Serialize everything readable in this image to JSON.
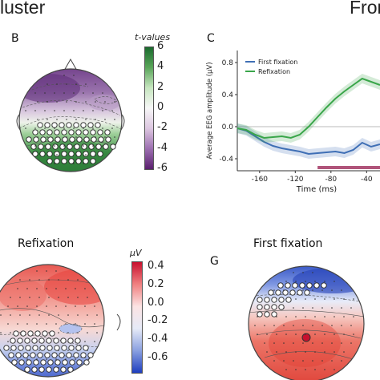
{
  "header": {
    "left": "luster",
    "right": "Fron"
  },
  "panelB": {
    "label": "B",
    "colorbar": {
      "unit": "t-values",
      "ticks": [
        "6",
        "4",
        "2",
        "0",
        "-2",
        "-4",
        "-6"
      ],
      "colors": [
        "#1b6b2e",
        "#5aa65a",
        "#c7e6c0",
        "#f7f7f7",
        "#dcc6e0",
        "#9c6fb0",
        "#5a1f6e"
      ]
    }
  },
  "panelC": {
    "label": "C",
    "chart_data": {
      "type": "line",
      "xlabel": "Time (ms)",
      "ylabel": "Average EEG amplitude (μV)",
      "xlim": [
        -185,
        -25
      ],
      "ylim": [
        -0.55,
        0.95
      ],
      "xticks": [
        "-160",
        "-120",
        "-80",
        "-40"
      ],
      "yticks": [
        "0.8",
        "0.4",
        "0.0",
        "-0.4"
      ],
      "legend": "top-left",
      "series": [
        {
          "name": "First fixation",
          "color": "#3f6fb5",
          "x": [
            -185,
            -175,
            -165,
            -155,
            -145,
            -135,
            -125,
            -115,
            -105,
            -95,
            -85,
            -75,
            -65,
            -55,
            -45,
            -35,
            -25
          ],
          "y": [
            -0.02,
            -0.05,
            -0.12,
            -0.19,
            -0.24,
            -0.27,
            -0.29,
            -0.31,
            -0.34,
            -0.33,
            -0.32,
            -0.31,
            -0.33,
            -0.29,
            -0.2,
            -0.25,
            -0.22
          ]
        },
        {
          "name": "Refixation",
          "color": "#3aa64a",
          "x": [
            -185,
            -175,
            -165,
            -155,
            -145,
            -135,
            -125,
            -115,
            -105,
            -95,
            -85,
            -75,
            -65,
            -55,
            -45,
            -35,
            -25
          ],
          "y": [
            -0.02,
            -0.04,
            -0.1,
            -0.14,
            -0.13,
            -0.12,
            -0.14,
            -0.1,
            0.0,
            0.12,
            0.24,
            0.35,
            0.44,
            0.52,
            0.6,
            0.56,
            0.52
          ]
        }
      ]
    }
  },
  "panelRefix": {
    "title": "Refixation",
    "colorbar": {
      "unit": "μV",
      "ticks": [
        "0.4",
        "0.2",
        "0.0",
        "-0.2",
        "-0.4",
        "-0.6"
      ],
      "colors": [
        "#c8102e",
        "#f08080",
        "#fbe3e3",
        "#e6eaf7",
        "#8aa0e0",
        "#1f3fbf"
      ]
    }
  },
  "panelG": {
    "label": "G",
    "title": "First fixation"
  }
}
